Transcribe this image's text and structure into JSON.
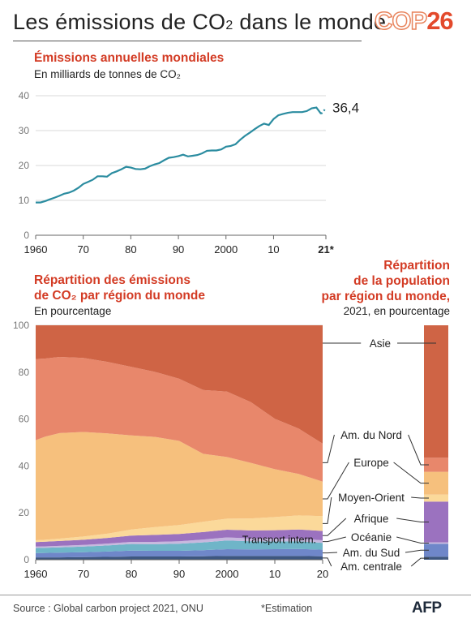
{
  "header": {
    "title": "Les émissions de CO",
    "title_sub": "2",
    "title_end": " dans le monde",
    "logo_cop": "COP",
    "logo_num": "26"
  },
  "colors": {
    "title_red": "#d33b24",
    "line": "#2b8ca0",
    "asie": "#cf6445",
    "am_nord": "#e8876b",
    "europe": "#f6c07d",
    "moyen_orient": "#fbd99a",
    "afrique": "#9b72bf",
    "oceanie": "#c7b8de",
    "am_sud": "#6f87c9",
    "am_centrale": "#3e577f",
    "transport": "#6fb5c8"
  },
  "chart_data": [
    {
      "type": "line",
      "title": "Émissions annuelles mondiales",
      "subtitle": "En milliards de tonnes de CO₂",
      "xlim": [
        1960,
        2021
      ],
      "ylim": [
        0,
        40
      ],
      "yticks": [
        0,
        10,
        20,
        30,
        40
      ],
      "xtick_labels": [
        {
          "x": 1960,
          "label": "1960"
        },
        {
          "x": 1970,
          "label": "70"
        },
        {
          "x": 1980,
          "label": "80"
        },
        {
          "x": 1990,
          "label": "90"
        },
        {
          "x": 2000,
          "label": "2000"
        },
        {
          "x": 2010,
          "label": "10"
        },
        {
          "x": 2021,
          "label": "21*"
        }
      ],
      "grid": true,
      "x": [
        1960,
        1961,
        1962,
        1963,
        1964,
        1965,
        1966,
        1967,
        1968,
        1969,
        1970,
        1971,
        1972,
        1973,
        1974,
        1975,
        1976,
        1977,
        1978,
        1979,
        1980,
        1981,
        1982,
        1983,
        1984,
        1985,
        1986,
        1987,
        1988,
        1989,
        1990,
        1991,
        1992,
        1993,
        1994,
        1995,
        1996,
        1997,
        1998,
        1999,
        2000,
        2001,
        2002,
        2003,
        2004,
        2005,
        2006,
        2007,
        2008,
        2009,
        2010,
        2011,
        2012,
        2013,
        2014,
        2015,
        2016,
        2017,
        2018,
        2019,
        2020
      ],
      "values": [
        9.4,
        9.4,
        9.8,
        10.3,
        10.8,
        11.3,
        11.9,
        12.2,
        12.8,
        13.6,
        14.7,
        15.3,
        15.9,
        16.9,
        16.9,
        16.8,
        17.8,
        18.3,
        18.9,
        19.6,
        19.4,
        19.0,
        18.9,
        19.1,
        19.8,
        20.3,
        20.7,
        21.5,
        22.2,
        22.4,
        22.7,
        23.1,
        22.6,
        22.8,
        23.0,
        23.5,
        24.2,
        24.3,
        24.3,
        24.6,
        25.4,
        25.6,
        26.1,
        27.4,
        28.5,
        29.4,
        30.4,
        31.3,
        32.0,
        31.6,
        33.3,
        34.4,
        34.8,
        35.1,
        35.3,
        35.3,
        35.3,
        35.6,
        36.4,
        36.6,
        34.8
      ],
      "estimate": {
        "x": 2021,
        "value": 36.4,
        "label": "36,4"
      }
    },
    {
      "type": "area",
      "stacked": true,
      "title": "Répartition des émissions de CO₂ par région du monde",
      "subtitle": "En pourcentage",
      "xlim": [
        1960,
        2020
      ],
      "ylim": [
        0,
        100
      ],
      "yticks": [
        0,
        20,
        40,
        60,
        80,
        100
      ],
      "xtick_labels": [
        "1960",
        "70",
        "80",
        "90",
        "2000",
        "10",
        "20"
      ],
      "x": [
        1960,
        1962,
        1965,
        1970,
        1975,
        1980,
        1985,
        1990,
        1995,
        2000,
        2005,
        2010,
        2015,
        2020
      ],
      "series": [
        {
          "name": "Am. centrale",
          "values": [
            1.0,
            1.0,
            1.0,
            1.1,
            1.2,
            1.4,
            1.4,
            1.4,
            1.5,
            1.6,
            1.6,
            1.6,
            1.6,
            1.5
          ]
        },
        {
          "name": "Am. du Sud",
          "values": [
            1.8,
            1.9,
            2.0,
            2.1,
            2.3,
            2.5,
            2.4,
            2.4,
            2.6,
            2.9,
            2.8,
            2.9,
            3.0,
            2.8
          ]
        },
        {
          "name": "Transport intern.",
          "values": [
            2.2,
            2.2,
            2.3,
            2.4,
            2.6,
            2.8,
            2.8,
            3.0,
            3.3,
            3.7,
            3.5,
            3.3,
            3.3,
            2.9
          ]
        },
        {
          "name": "Océanie",
          "values": [
            0.6,
            0.6,
            0.6,
            0.7,
            0.8,
            0.9,
            1.0,
            1.1,
            1.2,
            1.3,
            1.2,
            1.2,
            1.1,
            1.1
          ]
        },
        {
          "name": "Afrique",
          "values": [
            1.9,
            2.0,
            2.1,
            2.2,
            2.4,
            2.7,
            3.0,
            3.1,
            3.2,
            3.3,
            3.4,
            3.6,
            3.9,
            4.0
          ]
        },
        {
          "name": "Moyen-Orient",
          "values": [
            0.8,
            0.8,
            1.0,
            1.4,
            1.8,
            2.6,
            3.3,
            3.8,
            4.4,
            4.7,
            5.1,
            5.6,
            6.0,
            6.3
          ]
        },
        {
          "name": "Europe",
          "values": [
            42.7,
            44.0,
            45.0,
            44.6,
            42.8,
            40.1,
            38.5,
            35.9,
            29.0,
            26.3,
            23.7,
            20.4,
            17.7,
            14.7
          ]
        },
        {
          "name": "Am. du Nord",
          "values": [
            34.6,
            33.3,
            32.5,
            31.6,
            30.5,
            29.3,
            27.7,
            26.5,
            27.2,
            27.9,
            25.9,
            21.5,
            19.3,
            16.2
          ]
        },
        {
          "name": "Asie",
          "values": [
            14.4,
            14.2,
            13.5,
            13.9,
            15.6,
            17.7,
            19.9,
            22.8,
            27.6,
            28.3,
            32.8,
            39.9,
            44.1,
            50.5
          ]
        }
      ]
    },
    {
      "type": "bar",
      "stacked": true,
      "title": "Répartition de la population par région du monde,",
      "subtitle": "2021, en pourcentage",
      "series": [
        {
          "name": "Am. centrale",
          "values": [
            1.3
          ]
        },
        {
          "name": "Am. du Sud",
          "values": [
            5.5
          ]
        },
        {
          "name": "Océanie",
          "values": [
            0.6
          ]
        },
        {
          "name": "Afrique",
          "values": [
            17.4
          ]
        },
        {
          "name": "Moyen-Orient",
          "values": [
            3.0
          ]
        },
        {
          "name": "Europe",
          "values": [
            9.7
          ]
        },
        {
          "name": "Am. du Nord",
          "values": [
            6.0
          ]
        },
        {
          "name": "Asie",
          "values": [
            56.5
          ]
        }
      ]
    }
  ],
  "labels": {
    "asie": "Asie",
    "am_nord": "Am. du Nord",
    "europe": "Europe",
    "moyen_orient": "Moyen-Orient",
    "afrique": "Afrique",
    "oceanie": "Océanie",
    "am_sud": "Am. du Sud",
    "am_centrale": "Am. centrale",
    "transport": "Transport intern."
  },
  "line_title": "Émissions annuelles mondiales",
  "line_subtitle": "En milliards de tonnes de CO₂",
  "area_title_1": "Répartition des émissions",
  "area_title_2": "de CO₂ par région du monde",
  "area_subtitle": "En pourcentage",
  "pop_title_1": "Répartition",
  "pop_title_2": "de la population",
  "pop_title_3": "par région du monde,",
  "pop_subtitle": "2021, en pourcentage",
  "footer": {
    "source": "Source : Global carbon project 2021, ONU",
    "note": "*Estimation",
    "logo": "AFP"
  }
}
